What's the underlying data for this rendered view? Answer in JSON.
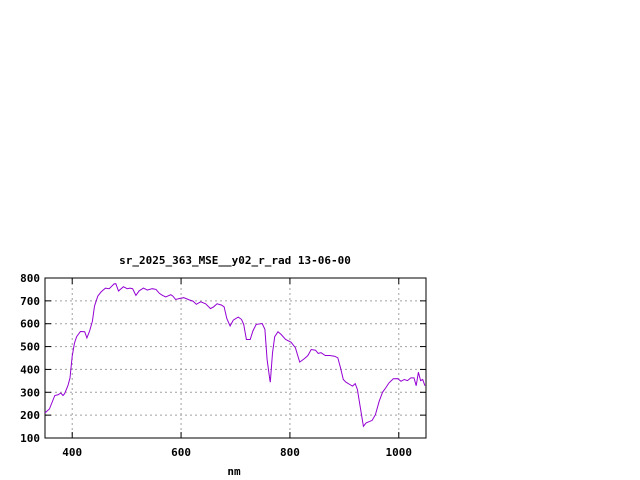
{
  "chart_data": {
    "type": "line",
    "title": "sr_2025_363_MSE__y02_r_rad 13-06-00",
    "xlabel": "nm",
    "ylabel": "",
    "xlim": [
      350,
      1050
    ],
    "ylim": [
      100,
      800
    ],
    "xticks": [
      400,
      600,
      800,
      1000
    ],
    "yticks": [
      100,
      200,
      300,
      400,
      500,
      600,
      700,
      800
    ],
    "grid": true,
    "line_color": "#9400d3",
    "series": [
      {
        "x": [
          350,
          358,
          368,
          374,
          379,
          383,
          386,
          392,
          396,
          400,
          404,
          408,
          415,
          423,
          427,
          432,
          437,
          441,
          447,
          453,
          461,
          468,
          477,
          480,
          485,
          494,
          501,
          506,
          511,
          517,
          523,
          531,
          538,
          547,
          554,
          560,
          566,
          572,
          581,
          585,
          590,
          599,
          605,
          615,
          622,
          628,
          636,
          645,
          654,
          660,
          666,
          674,
          679,
          684,
          690,
          696,
          705,
          711,
          715,
          720,
          727,
          732,
          738,
          749,
          754,
          758,
          763,
          764,
          768,
          772,
          778,
          784,
          792,
          802,
          810,
          818,
          827,
          833,
          839,
          847,
          852,
          857,
          865,
          873,
          882,
          888,
          893,
          898,
          903,
          910,
          915,
          920,
          924,
          929,
          935,
          940,
          951,
          957,
          964,
          970,
          976,
          982,
          990,
          998,
          1004,
          1010,
          1016,
          1022,
          1028,
          1032,
          1036,
          1040,
          1044,
          1048
        ],
        "y": [
          210,
          227,
          286,
          289,
          297,
          286,
          294,
          329,
          363,
          458,
          514,
          543,
          566,
          565,
          538,
          568,
          611,
          677,
          721,
          739,
          756,
          753,
          774,
          775,
          743,
          762,
          753,
          756,
          753,
          724,
          744,
          756,
          747,
          753,
          750,
          733,
          724,
          717,
          727,
          721,
          706,
          711,
          714,
          704,
          699,
          685,
          696,
          687,
          666,
          674,
          687,
          682,
          674,
          623,
          590,
          616,
          629,
          619,
          597,
          531,
          531,
          568,
          597,
          601,
          575,
          443,
          356,
          344,
          472,
          543,
          565,
          553,
          531,
          519,
          495,
          432,
          448,
          461,
          487,
          484,
          470,
          473,
          461,
          461,
          458,
          451,
          407,
          356,
          344,
          334,
          327,
          338,
          312,
          239,
          151,
          166,
          177,
          202,
          261,
          300,
          319,
          341,
          359,
          360,
          348,
          356,
          351,
          363,
          363,
          329,
          388,
          351,
          356,
          329
        ]
      }
    ]
  }
}
